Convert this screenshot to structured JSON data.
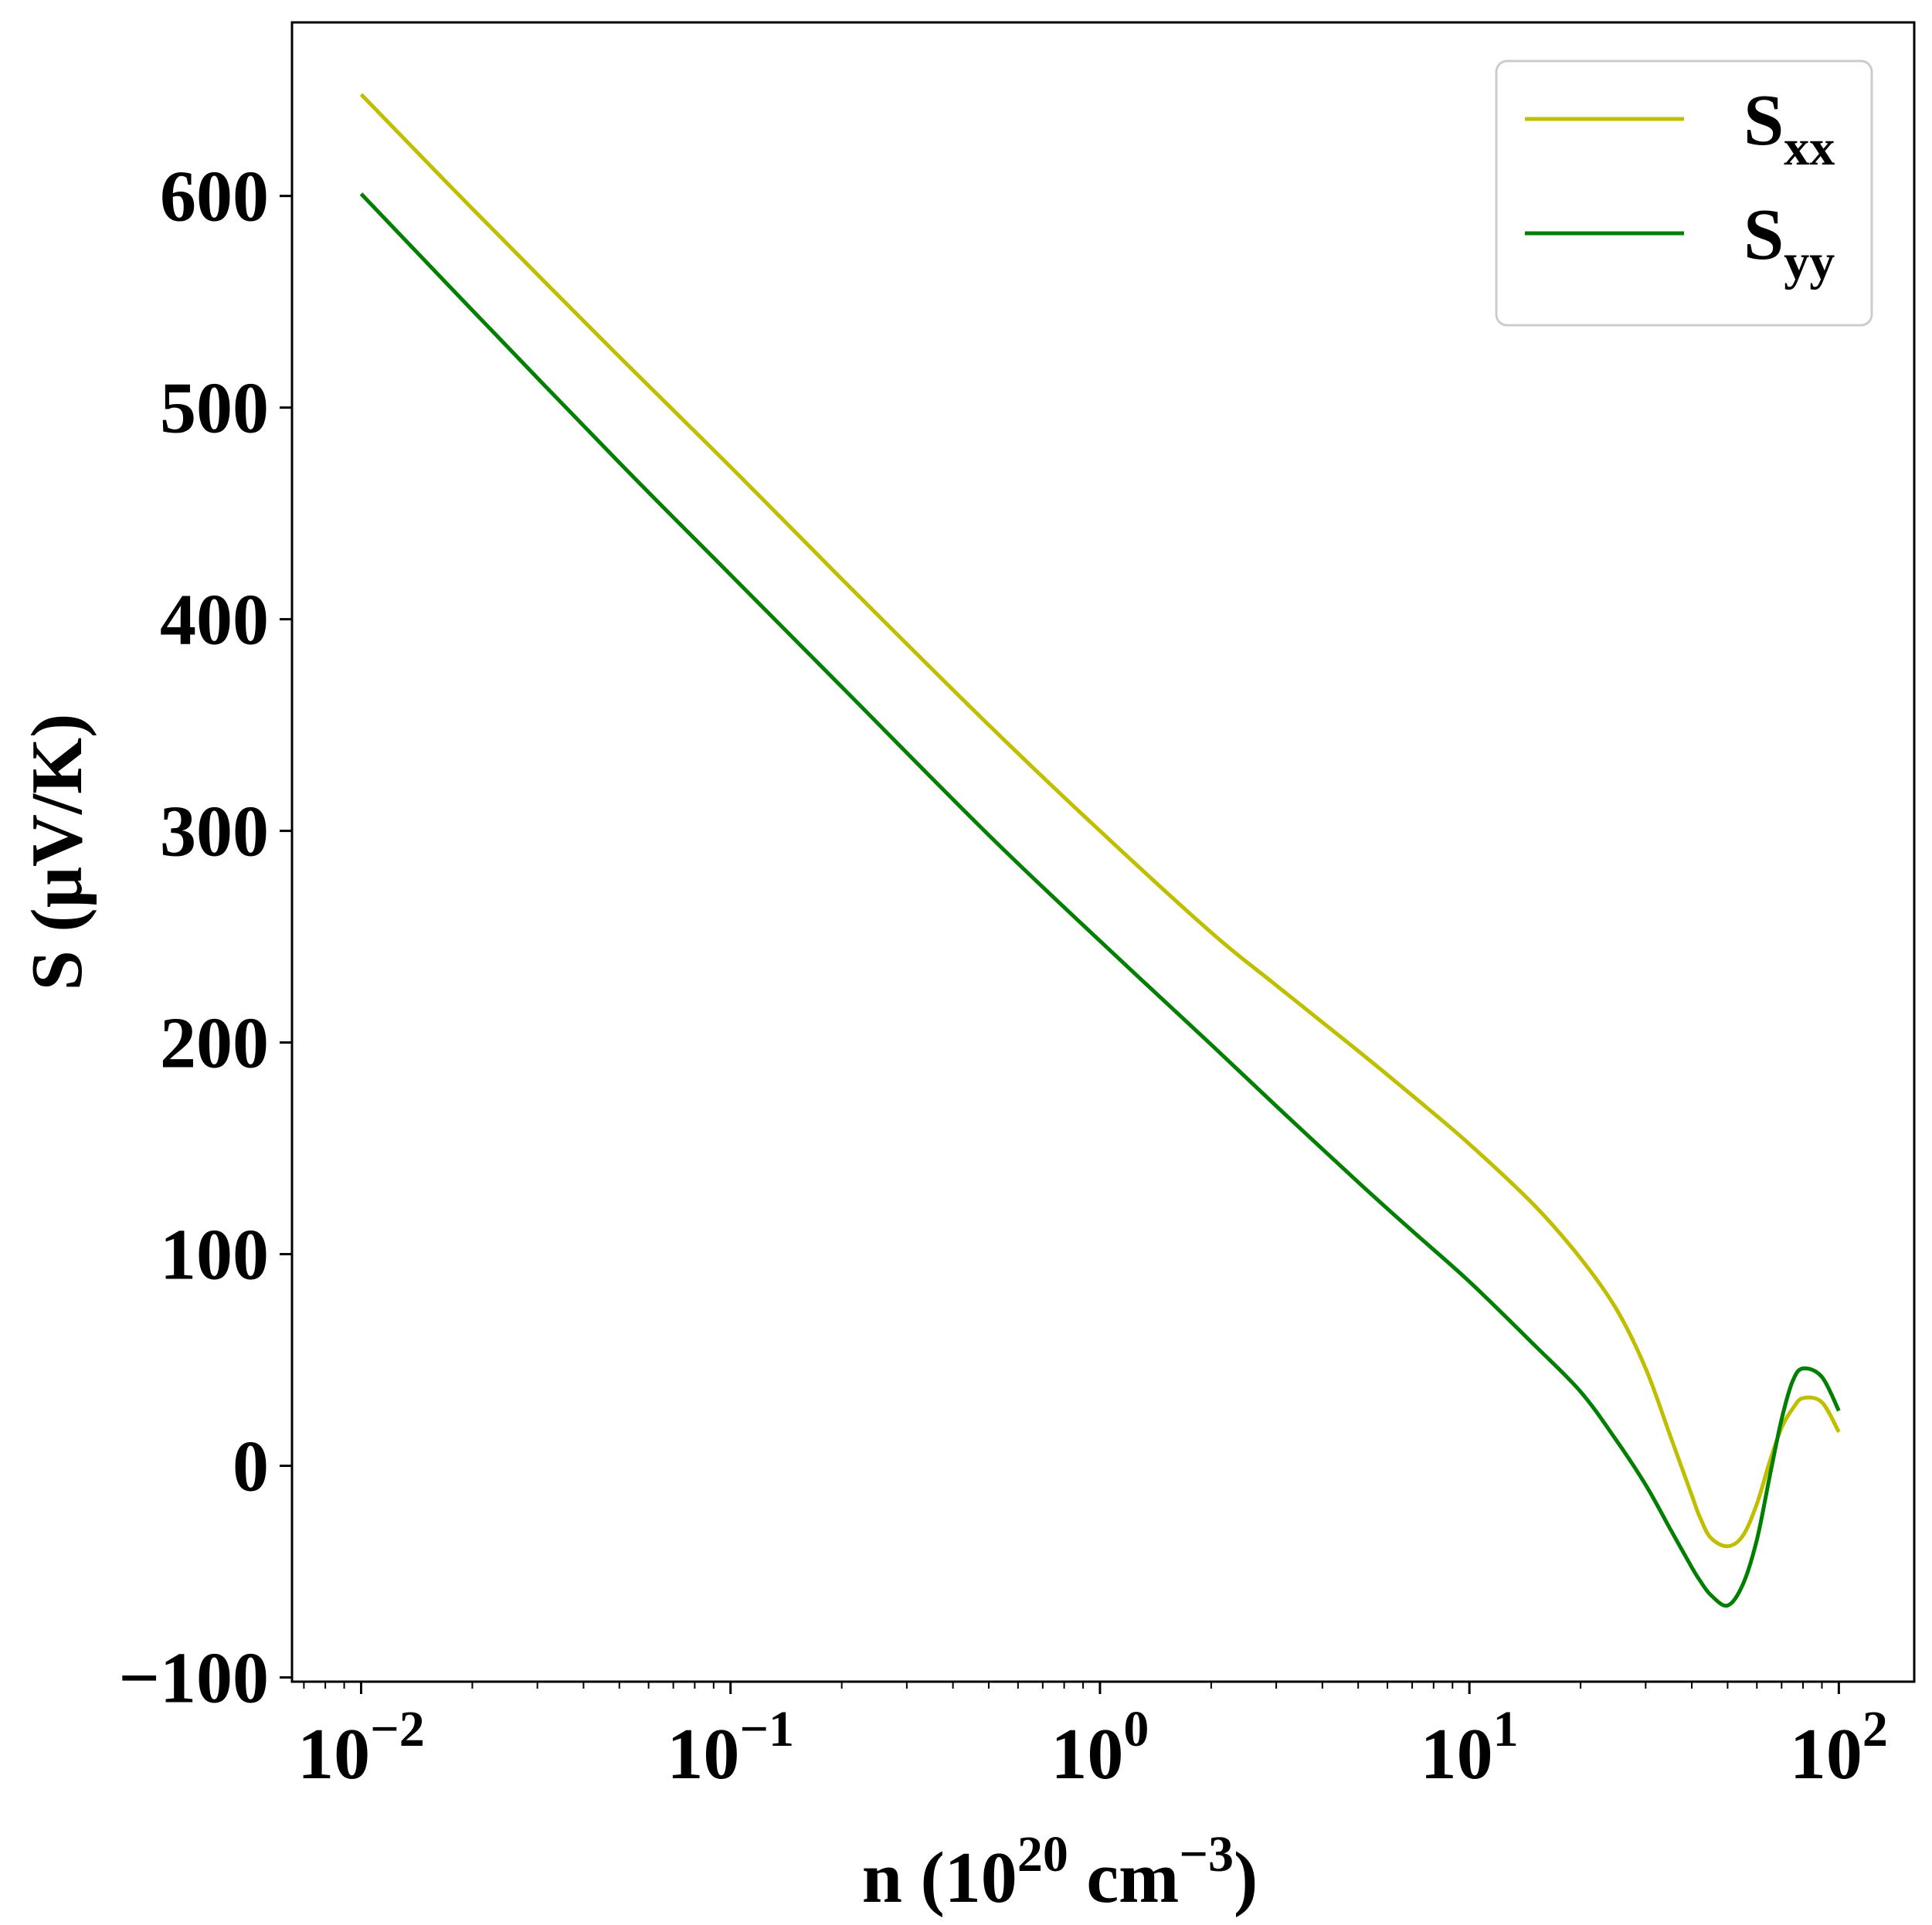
{
  "chart_data": {
    "type": "line",
    "xscale": "log",
    "xlim": [
      0.0065,
      160
    ],
    "ylim": [
      -102,
      682
    ],
    "grid": false,
    "legend_position": "top-right",
    "xlabel": {
      "prefix": "n (10",
      "sup1": "20",
      "middle": " cm",
      "sup2": "−3",
      "suffix": ")"
    },
    "ylabel": "S (μV/K)",
    "x_ticks": [
      {
        "value": 0.01,
        "base": "10",
        "exp": "−2"
      },
      {
        "value": 0.1,
        "base": "10",
        "exp": "−1"
      },
      {
        "value": 1,
        "base": "10",
        "exp": "0"
      },
      {
        "value": 10,
        "base": "10",
        "exp": "1"
      },
      {
        "value": 100,
        "base": "10",
        "exp": "2"
      }
    ],
    "y_ticks": [
      {
        "value": -100,
        "label": "−100"
      },
      {
        "value": 0,
        "label": "0"
      },
      {
        "value": 100,
        "label": "100"
      },
      {
        "value": 200,
        "label": "200"
      },
      {
        "value": 300,
        "label": "300"
      },
      {
        "value": 400,
        "label": "400"
      },
      {
        "value": 500,
        "label": "500"
      },
      {
        "value": 600,
        "label": "600"
      }
    ],
    "series": [
      {
        "name": "S",
        "name_sub": "xx",
        "color": "#bfbf00",
        "points": [
          [
            0.01,
            648
          ],
          [
            0.02,
            594
          ],
          [
            0.05,
            524
          ],
          [
            0.1,
            472
          ],
          [
            0.2,
            419
          ],
          [
            0.5,
            350
          ],
          [
            1,
            300
          ],
          [
            2,
            252
          ],
          [
            3,
            227
          ],
          [
            5,
            196
          ],
          [
            7,
            175
          ],
          [
            10,
            152
          ],
          [
            15,
            123
          ],
          [
            20,
            98
          ],
          [
            25,
            74
          ],
          [
            30,
            46
          ],
          [
            35,
            14
          ],
          [
            40,
            -14
          ],
          [
            42,
            -24
          ],
          [
            45,
            -34
          ],
          [
            50,
            -38
          ],
          [
            55,
            -33
          ],
          [
            60,
            -18
          ],
          [
            65,
            2
          ],
          [
            70,
            18
          ],
          [
            75,
            27
          ],
          [
            80,
            32
          ],
          [
            90,
            30
          ],
          [
            100,
            16
          ]
        ]
      },
      {
        "name": "S",
        "name_sub": "yy",
        "color": "#007f00",
        "points": [
          [
            0.01,
            601
          ],
          [
            0.02,
            546
          ],
          [
            0.05,
            474
          ],
          [
            0.1,
            421
          ],
          [
            0.2,
            368
          ],
          [
            0.5,
            298
          ],
          [
            1,
            248
          ],
          [
            2,
            199
          ],
          [
            3,
            170
          ],
          [
            5,
            134
          ],
          [
            7,
            111
          ],
          [
            10,
            87
          ],
          [
            15,
            57
          ],
          [
            20,
            35
          ],
          [
            25,
            12
          ],
          [
            30,
            -9
          ],
          [
            35,
            -30
          ],
          [
            40,
            -48
          ],
          [
            42,
            -54
          ],
          [
            45,
            -61
          ],
          [
            50,
            -66
          ],
          [
            55,
            -56
          ],
          [
            60,
            -35
          ],
          [
            65,
            -5
          ],
          [
            70,
            22
          ],
          [
            75,
            40
          ],
          [
            80,
            46
          ],
          [
            90,
            42
          ],
          [
            100,
            26
          ]
        ]
      }
    ]
  }
}
